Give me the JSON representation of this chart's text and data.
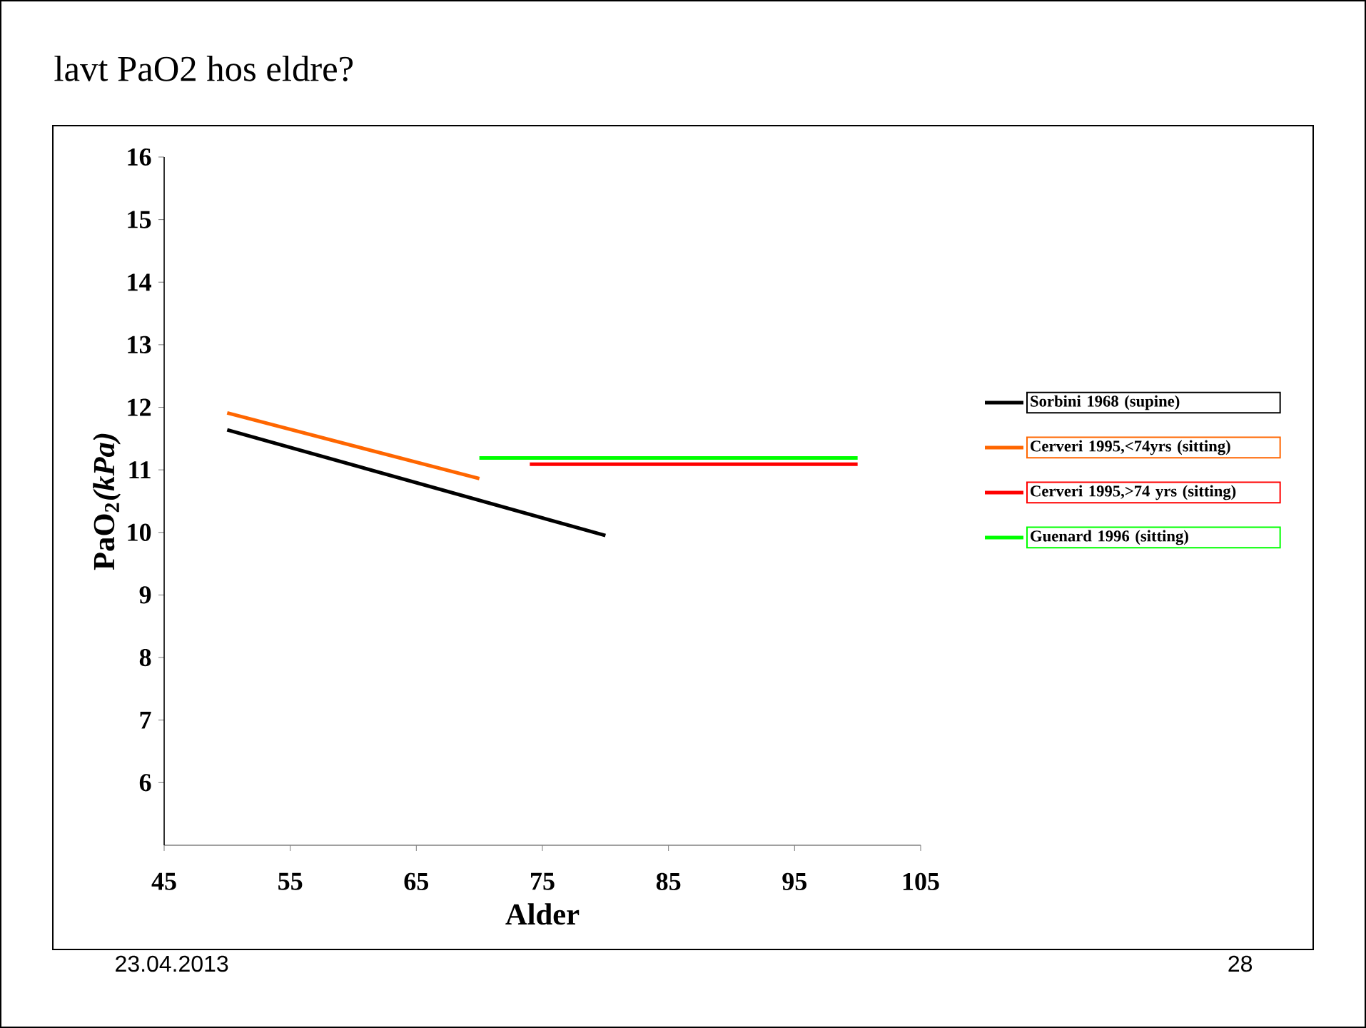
{
  "chart_data": {
    "type": "line",
    "title": "lavt PaO2 hos eldre?",
    "xlabel": "Alder",
    "ylabel": "PaO$_{2}$*(kPa)*",
    "xlim": [
      45,
      105
    ],
    "xticks": [
      45,
      55,
      65,
      75,
      85,
      95,
      105
    ],
    "ylim": [
      5,
      16
    ],
    "yticks": [
      6,
      7,
      8,
      9,
      10,
      11,
      12,
      13,
      14,
      15,
      16
    ],
    "legend": "right",
    "grid": false,
    "line_style": "solid",
    "series": [
      {
        "name": "Sorbini 1968 (supine)",
        "color": "#000000",
        "x": [
          50,
          80
        ],
        "values": [
          11.64,
          9.95
        ]
      },
      {
        "name": "Cerveri 1995,<74yrs (sitting)",
        "color": "#ff6600",
        "x": [
          50,
          70
        ],
        "values": [
          11.91,
          10.86
        ]
      },
      {
        "name": "Cerveri 1995,>74 yrs (sitting)",
        "color": "#ff0000",
        "x": [
          74,
          100
        ],
        "values": [
          11.09,
          11.09
        ]
      },
      {
        "name": "Guenard 1996 (sitting)",
        "color": "#00ff00",
        "x": [
          70,
          100
        ],
        "values": [
          11.19,
          11.19
        ]
      }
    ],
    "annotations": [
      "23.04.2013",
      "28"
    ]
  }
}
